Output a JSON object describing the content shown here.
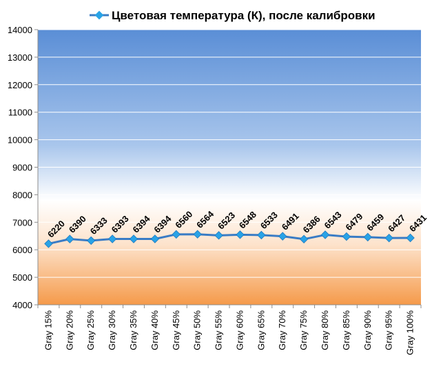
{
  "chart_data": {
    "type": "line",
    "legend": {
      "label": "Цветовая температура (К), после калибровки",
      "position": "top"
    },
    "colors": {
      "line": "#3a7cc5",
      "marker": "#29a3e6",
      "bg_top": "#5b8fd6",
      "bg_mid": "#ffffff",
      "bg_bottom": "#f59a4a",
      "grid": "#ffffff"
    },
    "grid": true,
    "ylim": [
      4000,
      14000
    ],
    "yticks": [
      4000,
      5000,
      6000,
      7000,
      8000,
      9000,
      10000,
      11000,
      12000,
      13000,
      14000
    ],
    "ytick_labels": [
      "4000",
      "5000",
      "6000",
      "7000",
      "8000",
      "9000",
      "10000",
      "11000",
      "12000",
      "13000",
      "14000"
    ],
    "categories": [
      "Gray 15%",
      "Gray 20%",
      "Gray 25%",
      "Gray 30%",
      "Gray 35%",
      "Gray 40%",
      "Gray 45%",
      "Gray 50%",
      "Gray 55%",
      "Gray 60%",
      "Gray 65%",
      "Gray 70%",
      "Gray 75%",
      "Gray 80%",
      "Gray 85%",
      "Gray 90%",
      "Gray 95%",
      "Gray 100%"
    ],
    "values": [
      6220,
      6390,
      6333,
      6393,
      6394,
      6394,
      6560,
      6564,
      6523,
      6548,
      6533,
      6491,
      6386,
      6543,
      6479,
      6459,
      6427,
      6431
    ],
    "value_labels": [
      "6220",
      "6390",
      "6333",
      "6393",
      "6394",
      "6394",
      "6560",
      "6564",
      "6523",
      "6548",
      "6533",
      "6491",
      "6386",
      "6543",
      "6479",
      "6459",
      "6427",
      "6431"
    ]
  }
}
